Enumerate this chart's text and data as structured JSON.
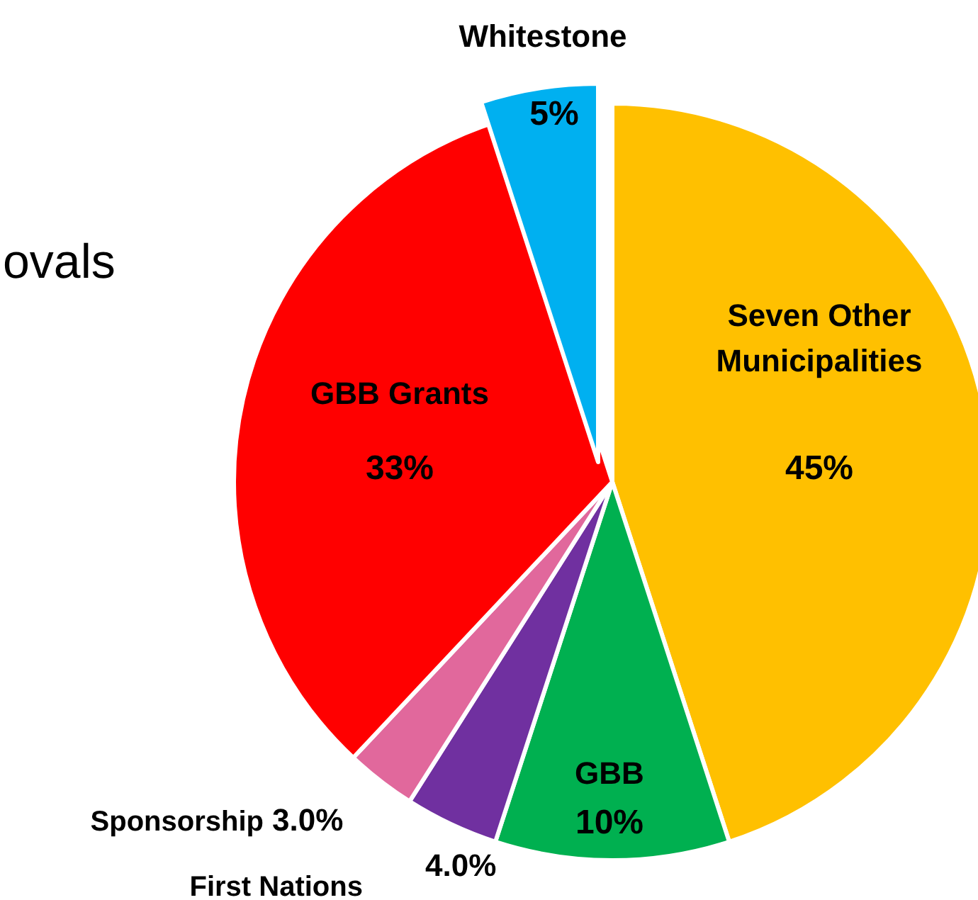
{
  "chart_data": {
    "type": "pie",
    "categories": [
      "Seven Other Municipalities",
      "GBB",
      "First Nations",
      "Sponsorship",
      "GBB Grants",
      "Whitestone"
    ],
    "values": [
      45,
      10,
      4.0,
      3.0,
      33,
      5
    ],
    "value_labels": [
      "45%",
      "10%",
      "4.0%",
      "3.0%",
      "33%",
      "5%"
    ],
    "colors": [
      "#ffc000",
      "#00b050",
      "#7030a0",
      "#e1689c",
      "#ff0000",
      "#00b0f0"
    ],
    "annotations": [
      "ovals"
    ]
  }
}
